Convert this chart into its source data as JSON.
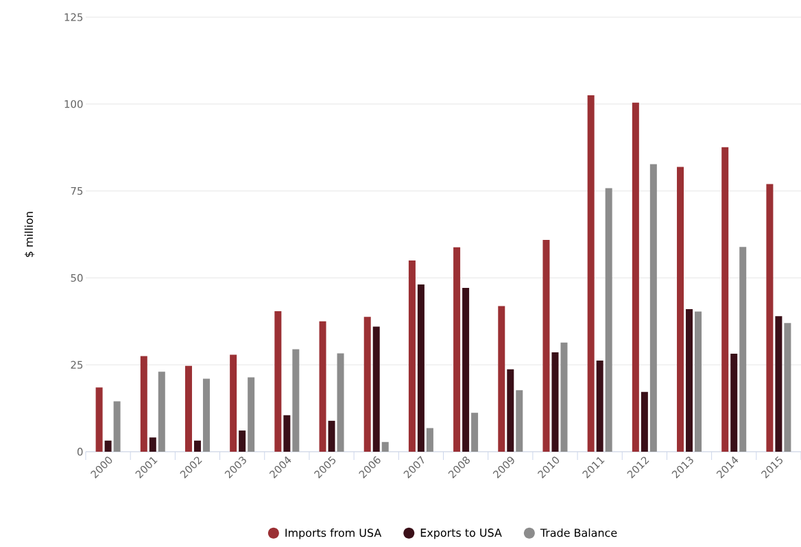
{
  "chart_data": {
    "type": "bar",
    "ylabel": "$ million",
    "categories": [
      "2000",
      "2001",
      "2002",
      "2003",
      "2004",
      "2005",
      "2006",
      "2007",
      "2008",
      "2009",
      "2010",
      "2011",
      "2012",
      "2013",
      "2014",
      "2015"
    ],
    "series": [
      {
        "name": "Imports from USA",
        "color": "#9b3034",
        "values": [
          18.5,
          27.5,
          24.7,
          27.9,
          40.4,
          37.5,
          38.8,
          55.0,
          58.8,
          41.9,
          60.9,
          102.5,
          100.4,
          81.9,
          87.6,
          77.0
        ]
      },
      {
        "name": "Exports to USA",
        "color": "#3a0f18",
        "values": [
          3.2,
          4.1,
          3.2,
          6.1,
          10.5,
          8.9,
          36.0,
          48.1,
          47.1,
          23.7,
          28.6,
          26.2,
          17.2,
          41.0,
          28.2,
          39.0
        ]
      },
      {
        "name": "Trade Balance",
        "color": "#8c8c8c",
        "values": [
          14.5,
          23.0,
          21.0,
          21.4,
          29.5,
          28.3,
          2.8,
          6.8,
          11.2,
          17.7,
          31.4,
          75.8,
          82.7,
          40.3,
          58.9,
          37.0
        ]
      }
    ],
    "ylim": [
      0,
      125
    ],
    "yticks": [
      0,
      25,
      50,
      75,
      100,
      125
    ],
    "grid": "y",
    "legend": "bottom"
  }
}
